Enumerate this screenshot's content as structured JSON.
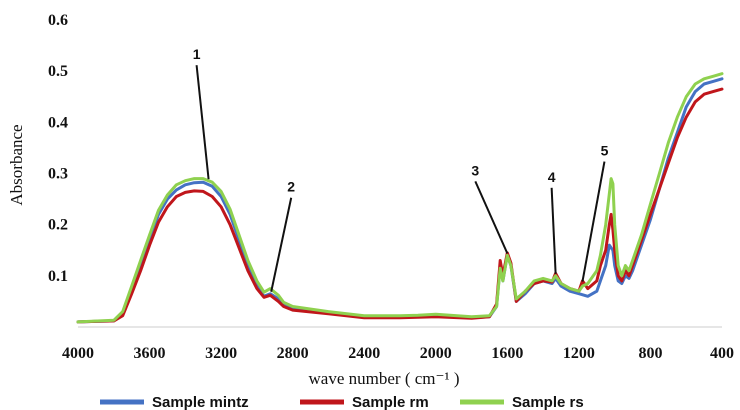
{
  "chart_data": {
    "type": "line",
    "title": "",
    "xlabel": "wave number ( cm⁻¹ )",
    "ylabel": "Absorbance",
    "xlim": [
      4000,
      400
    ],
    "ylim": [
      0,
      0.6
    ],
    "x_reversed": true,
    "x_ticks": [
      "4000",
      "3600",
      "3200",
      "2800",
      "2400",
      "2000",
      "1600",
      "1200",
      "800",
      "400"
    ],
    "y_ticks": [
      "0.1",
      "0.2",
      "0.3",
      "0.4",
      "0.5",
      "0.6"
    ],
    "grid": false,
    "legend_position": "bottom",
    "series": [
      {
        "name": "Sample mintz",
        "color": "#4472c4",
        "points": [
          [
            4000,
            0.01
          ],
          [
            3800,
            0.012
          ],
          [
            3750,
            0.025
          ],
          [
            3700,
            0.07
          ],
          [
            3650,
            0.12
          ],
          [
            3600,
            0.17
          ],
          [
            3550,
            0.22
          ],
          [
            3500,
            0.25
          ],
          [
            3450,
            0.268
          ],
          [
            3400,
            0.278
          ],
          [
            3350,
            0.282
          ],
          [
            3300,
            0.283
          ],
          [
            3250,
            0.275
          ],
          [
            3200,
            0.255
          ],
          [
            3150,
            0.22
          ],
          [
            3100,
            0.17
          ],
          [
            3050,
            0.12
          ],
          [
            3000,
            0.08
          ],
          [
            2960,
            0.06
          ],
          [
            2925,
            0.065
          ],
          [
            2880,
            0.055
          ],
          [
            2850,
            0.042
          ],
          [
            2800,
            0.035
          ],
          [
            2600,
            0.028
          ],
          [
            2400,
            0.02
          ],
          [
            2200,
            0.02
          ],
          [
            2100,
            0.021
          ],
          [
            2000,
            0.022
          ],
          [
            1800,
            0.018
          ],
          [
            1700,
            0.02
          ],
          [
            1660,
            0.04
          ],
          [
            1640,
            0.12
          ],
          [
            1625,
            0.09
          ],
          [
            1600,
            0.14
          ],
          [
            1580,
            0.12
          ],
          [
            1550,
            0.05
          ],
          [
            1500,
            0.065
          ],
          [
            1450,
            0.085
          ],
          [
            1400,
            0.09
          ],
          [
            1350,
            0.085
          ],
          [
            1330,
            0.095
          ],
          [
            1300,
            0.08
          ],
          [
            1250,
            0.07
          ],
          [
            1200,
            0.065
          ],
          [
            1150,
            0.06
          ],
          [
            1100,
            0.07
          ],
          [
            1080,
            0.09
          ],
          [
            1050,
            0.12
          ],
          [
            1030,
            0.16
          ],
          [
            1010,
            0.15
          ],
          [
            1000,
            0.12
          ],
          [
            980,
            0.09
          ],
          [
            960,
            0.085
          ],
          [
            940,
            0.1
          ],
          [
            920,
            0.095
          ],
          [
            900,
            0.11
          ],
          [
            850,
            0.16
          ],
          [
            800,
            0.21
          ],
          [
            750,
            0.27
          ],
          [
            700,
            0.33
          ],
          [
            650,
            0.38
          ],
          [
            600,
            0.43
          ],
          [
            550,
            0.46
          ],
          [
            500,
            0.475
          ],
          [
            450,
            0.48
          ],
          [
            400,
            0.485
          ]
        ]
      },
      {
        "name": "Sample rm",
        "color": "#c0161b",
        "points": [
          [
            4000,
            0.01
          ],
          [
            3800,
            0.012
          ],
          [
            3750,
            0.022
          ],
          [
            3700,
            0.065
          ],
          [
            3650,
            0.11
          ],
          [
            3600,
            0.16
          ],
          [
            3550,
            0.205
          ],
          [
            3500,
            0.235
          ],
          [
            3450,
            0.255
          ],
          [
            3400,
            0.263
          ],
          [
            3350,
            0.266
          ],
          [
            3300,
            0.265
          ],
          [
            3250,
            0.255
          ],
          [
            3200,
            0.235
          ],
          [
            3150,
            0.2
          ],
          [
            3100,
            0.155
          ],
          [
            3050,
            0.11
          ],
          [
            3000,
            0.075
          ],
          [
            2960,
            0.058
          ],
          [
            2925,
            0.062
          ],
          [
            2880,
            0.05
          ],
          [
            2850,
            0.04
          ],
          [
            2800,
            0.033
          ],
          [
            2600,
            0.026
          ],
          [
            2400,
            0.018
          ],
          [
            2200,
            0.018
          ],
          [
            2100,
            0.019
          ],
          [
            2000,
            0.02
          ],
          [
            1800,
            0.017
          ],
          [
            1700,
            0.02
          ],
          [
            1660,
            0.045
          ],
          [
            1640,
            0.13
          ],
          [
            1625,
            0.1
          ],
          [
            1600,
            0.145
          ],
          [
            1580,
            0.125
          ],
          [
            1550,
            0.05
          ],
          [
            1500,
            0.07
          ],
          [
            1450,
            0.085
          ],
          [
            1400,
            0.09
          ],
          [
            1350,
            0.088
          ],
          [
            1330,
            0.105
          ],
          [
            1300,
            0.085
          ],
          [
            1250,
            0.075
          ],
          [
            1200,
            0.07
          ],
          [
            1180,
            0.09
          ],
          [
            1150,
            0.075
          ],
          [
            1100,
            0.09
          ],
          [
            1080,
            0.12
          ],
          [
            1050,
            0.15
          ],
          [
            1030,
            0.2
          ],
          [
            1020,
            0.22
          ],
          [
            1010,
            0.19
          ],
          [
            1000,
            0.15
          ],
          [
            980,
            0.1
          ],
          [
            960,
            0.09
          ],
          [
            940,
            0.11
          ],
          [
            920,
            0.1
          ],
          [
            900,
            0.12
          ],
          [
            850,
            0.17
          ],
          [
            800,
            0.22
          ],
          [
            750,
            0.27
          ],
          [
            700,
            0.32
          ],
          [
            650,
            0.37
          ],
          [
            600,
            0.41
          ],
          [
            550,
            0.44
          ],
          [
            500,
            0.455
          ],
          [
            450,
            0.46
          ],
          [
            400,
            0.465
          ]
        ]
      },
      {
        "name": "Sample rs",
        "color": "#8fd14f",
        "points": [
          [
            4000,
            0.01
          ],
          [
            3800,
            0.013
          ],
          [
            3750,
            0.03
          ],
          [
            3700,
            0.08
          ],
          [
            3650,
            0.13
          ],
          [
            3600,
            0.18
          ],
          [
            3550,
            0.228
          ],
          [
            3500,
            0.258
          ],
          [
            3450,
            0.278
          ],
          [
            3400,
            0.286
          ],
          [
            3350,
            0.29
          ],
          [
            3300,
            0.29
          ],
          [
            3250,
            0.283
          ],
          [
            3200,
            0.265
          ],
          [
            3150,
            0.23
          ],
          [
            3100,
            0.18
          ],
          [
            3050,
            0.13
          ],
          [
            3000,
            0.09
          ],
          [
            2960,
            0.068
          ],
          [
            2925,
            0.075
          ],
          [
            2880,
            0.062
          ],
          [
            2850,
            0.048
          ],
          [
            2800,
            0.04
          ],
          [
            2600,
            0.03
          ],
          [
            2400,
            0.022
          ],
          [
            2200,
            0.022
          ],
          [
            2100,
            0.023
          ],
          [
            2000,
            0.025
          ],
          [
            1800,
            0.02
          ],
          [
            1700,
            0.022
          ],
          [
            1660,
            0.04
          ],
          [
            1640,
            0.115
          ],
          [
            1625,
            0.09
          ],
          [
            1600,
            0.14
          ],
          [
            1580,
            0.12
          ],
          [
            1550,
            0.055
          ],
          [
            1500,
            0.07
          ],
          [
            1450,
            0.09
          ],
          [
            1400,
            0.095
          ],
          [
            1350,
            0.09
          ],
          [
            1330,
            0.1
          ],
          [
            1300,
            0.085
          ],
          [
            1250,
            0.075
          ],
          [
            1200,
            0.07
          ],
          [
            1180,
            0.08
          ],
          [
            1150,
            0.085
          ],
          [
            1100,
            0.11
          ],
          [
            1080,
            0.14
          ],
          [
            1050,
            0.2
          ],
          [
            1030,
            0.26
          ],
          [
            1020,
            0.29
          ],
          [
            1010,
            0.28
          ],
          [
            1000,
            0.2
          ],
          [
            980,
            0.12
          ],
          [
            960,
            0.1
          ],
          [
            940,
            0.12
          ],
          [
            920,
            0.11
          ],
          [
            900,
            0.13
          ],
          [
            850,
            0.18
          ],
          [
            800,
            0.24
          ],
          [
            750,
            0.3
          ],
          [
            700,
            0.36
          ],
          [
            650,
            0.41
          ],
          [
            600,
            0.45
          ],
          [
            550,
            0.475
          ],
          [
            500,
            0.485
          ],
          [
            450,
            0.49
          ],
          [
            400,
            0.495
          ]
        ]
      }
    ],
    "annotations": [
      {
        "label": "1",
        "x": 3270,
        "y": 0.285
      },
      {
        "label": "2",
        "x": 2920,
        "y": 0.065
      },
      {
        "label": "3",
        "x": 1600,
        "y": 0.14
      },
      {
        "label": "4",
        "x": 1330,
        "y": 0.1
      },
      {
        "label": "5",
        "x": 1180,
        "y": 0.085
      }
    ]
  }
}
